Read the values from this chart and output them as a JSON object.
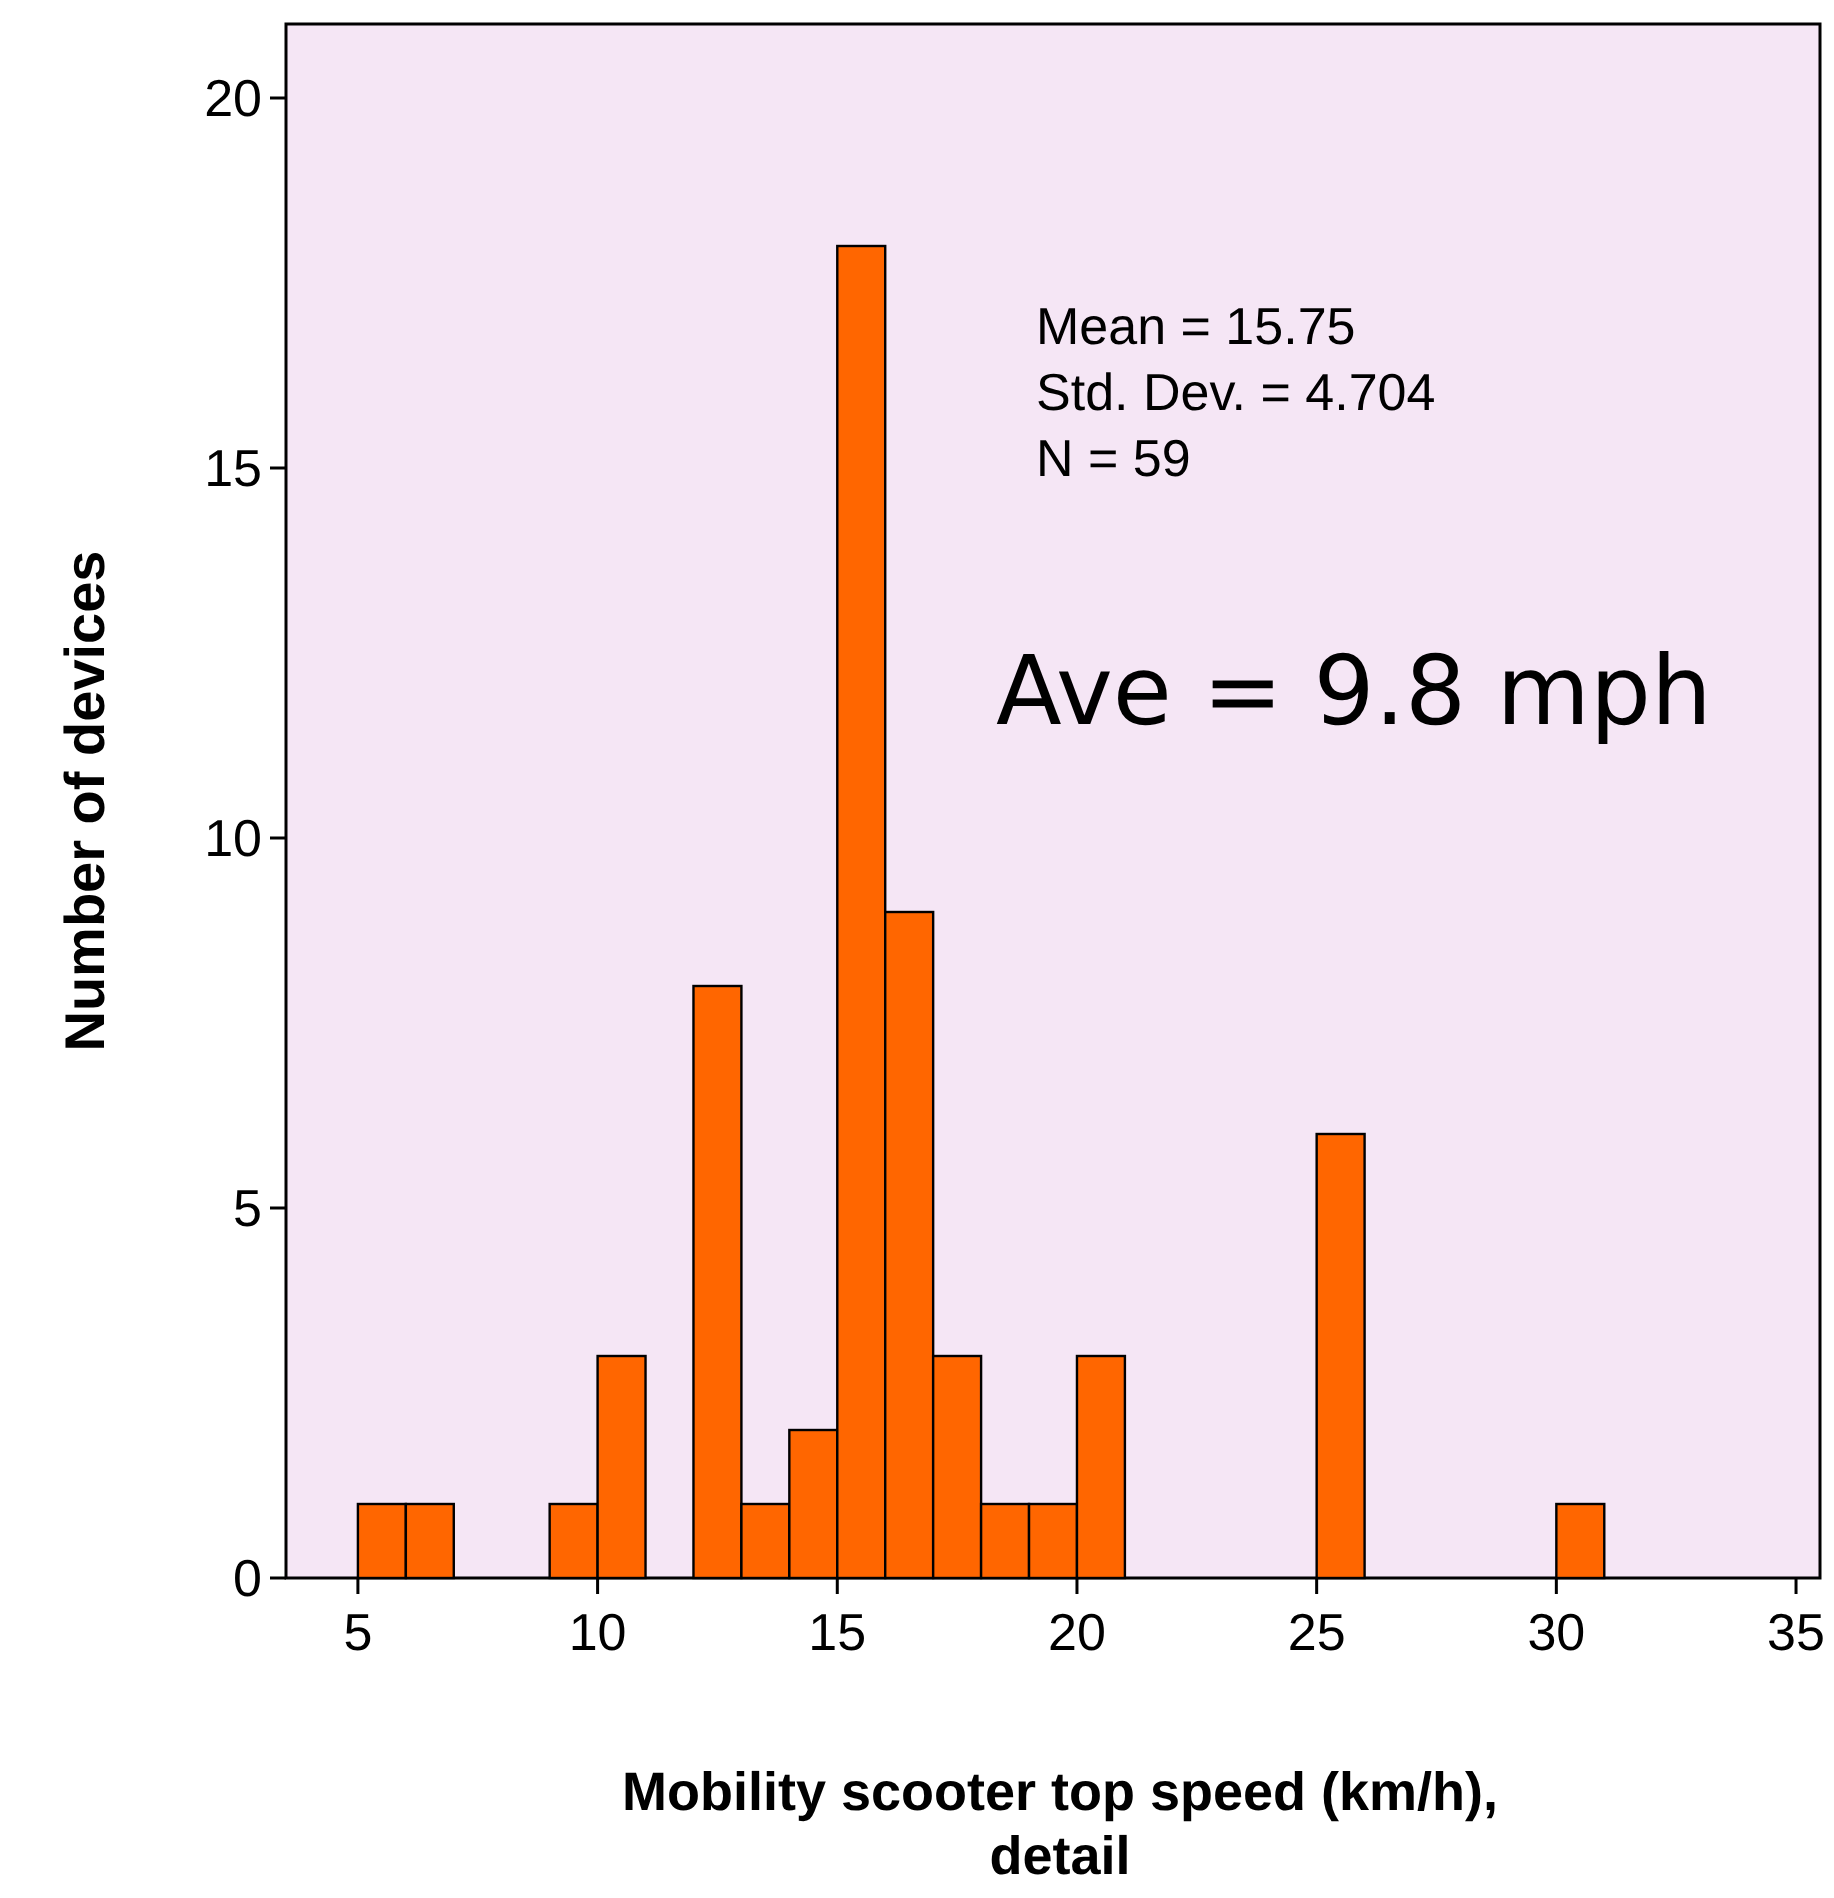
{
  "chart_data": {
    "type": "histogram",
    "xlabel": "Mobility scooter top speed (km/h), detail",
    "ylabel": "Number of devices",
    "bins": [
      5,
      6,
      7,
      8,
      9,
      10,
      11,
      12,
      13,
      14,
      15,
      16,
      17,
      18,
      19,
      20,
      21,
      22,
      23,
      24,
      25,
      26,
      27,
      28,
      29,
      30,
      31
    ],
    "values": [
      1,
      1,
      0,
      0,
      1,
      3,
      0,
      8,
      1,
      2,
      18,
      9,
      3,
      1,
      1,
      3,
      0,
      0,
      0,
      0,
      6,
      0,
      0,
      0,
      0,
      1
    ],
    "color": "#ff6600",
    "xlim": [
      3.5,
      35.5
    ],
    "xticks": [
      5,
      10,
      15,
      20,
      25,
      30,
      35
    ],
    "ylim": [
      0,
      21
    ],
    "yticks": [
      0,
      5,
      10,
      15,
      20
    ],
    "grid": false,
    "annotations": [
      "Mean = 15.75",
      "Std. Dev. = 4.704",
      "N = 59",
      "Ave = 9.8 mph"
    ]
  }
}
